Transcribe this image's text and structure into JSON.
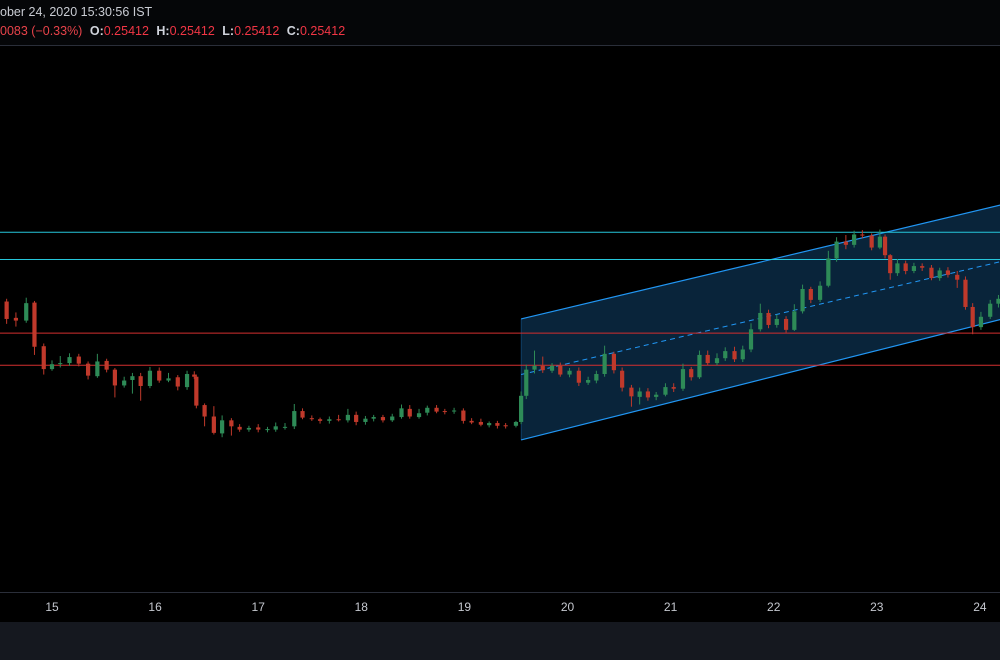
{
  "header": {
    "date_text": "ober 24, 2020 15:30:56 IST",
    "change_text": "0083 (−0.33%)",
    "open_label": "O:",
    "open_value": "0.25412",
    "high_label": "H:",
    "high_value": "0.25412",
    "low_label": "L:",
    "low_value": "0.25412",
    "close_label": "C:",
    "close_value": "0.25412"
  },
  "colors": {
    "up": "#2e8b57",
    "down": "#c0392b",
    "resistance": "#26c6da",
    "support": "#d32f2f",
    "channel": "#2196f3",
    "channel_fill": "#0b2a44"
  },
  "chart_data": {
    "type": "candlestick",
    "x_ticks": [
      "15",
      "16",
      "17",
      "18",
      "19",
      "20",
      "21",
      "22",
      "23",
      "24"
    ],
    "x_range": [
      14.47,
      24.22
    ],
    "y_range": [
      0.0,
      100.0
    ],
    "y_scale_note": "price axis not shown; values are relative price index (0 = bottom of plot, 100 = top)",
    "horizontal_levels": [
      {
        "kind": "resistance",
        "value": 66.0
      },
      {
        "kind": "resistance",
        "value": 61.0
      },
      {
        "kind": "support",
        "value": 47.5
      },
      {
        "kind": "support",
        "value": 41.6
      }
    ],
    "regression_channel": {
      "x_start": 19.55,
      "x_end": 24.22,
      "upper": [
        50.1,
        71.1
      ],
      "middle": [
        39.9,
        60.7
      ],
      "lower": [
        27.9,
        50.1
      ]
    },
    "candles": [
      [
        14.47,
        52.8,
        53.3,
        54.6,
        52.0
      ],
      [
        14.56,
        53.3,
        50.1,
        53.8,
        49.2
      ],
      [
        14.65,
        50.3,
        49.8,
        51.3,
        48.7
      ],
      [
        14.75,
        49.8,
        53.0,
        54.0,
        49.4
      ],
      [
        14.83,
        53.1,
        45.0,
        53.4,
        43.5
      ],
      [
        14.92,
        45.1,
        40.9,
        45.6,
        39.9
      ],
      [
        15.0,
        40.9,
        41.8,
        42.5,
        40.6
      ],
      [
        15.08,
        41.9,
        42.0,
        43.3,
        41.2
      ],
      [
        15.17,
        42.0,
        43.1,
        43.8,
        41.5
      ],
      [
        15.26,
        43.2,
        41.9,
        43.7,
        41.4
      ],
      [
        15.35,
        41.9,
        39.7,
        42.3,
        39.0
      ],
      [
        15.44,
        39.6,
        42.3,
        43.7,
        39.3
      ],
      [
        15.53,
        42.4,
        40.8,
        42.8,
        40.3
      ],
      [
        15.61,
        40.8,
        37.9,
        41.1,
        35.7
      ],
      [
        15.7,
        37.9,
        38.8,
        39.5,
        37.5
      ],
      [
        15.78,
        38.9,
        39.6,
        40.2,
        36.4
      ],
      [
        15.86,
        39.6,
        37.8,
        40.2,
        35.1
      ],
      [
        15.95,
        37.8,
        40.6,
        41.3,
        37.4
      ],
      [
        16.04,
        40.6,
        38.8,
        41.2,
        38.4
      ],
      [
        16.13,
        38.8,
        39.2,
        40.2,
        38.5
      ],
      [
        16.22,
        39.4,
        37.7,
        39.8,
        37.0
      ],
      [
        16.31,
        37.6,
        40.0,
        40.6,
        37.1
      ],
      [
        16.38,
        39.9,
        39.5,
        40.5,
        39.1
      ],
      [
        16.4,
        39.5,
        34.2,
        39.9,
        33.7
      ],
      [
        16.48,
        34.3,
        32.2,
        34.6,
        30.4
      ],
      [
        16.57,
        32.2,
        29.2,
        34.1,
        28.9
      ],
      [
        16.65,
        29.1,
        31.5,
        32.4,
        28.4
      ],
      [
        16.74,
        31.5,
        30.4,
        31.9,
        28.7
      ],
      [
        16.82,
        30.3,
        29.8,
        30.8,
        29.4
      ],
      [
        16.91,
        29.8,
        30.1,
        30.5,
        29.4
      ],
      [
        17.0,
        30.2,
        29.8,
        30.8,
        29.3
      ],
      [
        17.09,
        29.7,
        29.9,
        30.3,
        29.3
      ],
      [
        17.17,
        29.8,
        30.4,
        31.1,
        29.4
      ],
      [
        17.26,
        30.3,
        30.3,
        31.0,
        29.8
      ],
      [
        17.35,
        30.4,
        33.2,
        34.5,
        29.9
      ],
      [
        17.43,
        33.2,
        32.0,
        33.7,
        31.7
      ],
      [
        17.52,
        31.9,
        31.7,
        32.4,
        31.4
      ],
      [
        17.6,
        31.7,
        31.4,
        32.0,
        30.9
      ],
      [
        17.69,
        31.4,
        31.7,
        32.2,
        30.9
      ],
      [
        17.78,
        31.7,
        31.6,
        32.5,
        31.3
      ],
      [
        17.87,
        31.5,
        32.5,
        33.6,
        31.1
      ],
      [
        17.95,
        32.5,
        31.2,
        33.1,
        30.6
      ],
      [
        18.04,
        31.2,
        31.8,
        32.3,
        30.7
      ],
      [
        18.12,
        31.8,
        32.1,
        32.5,
        31.3
      ],
      [
        18.21,
        32.1,
        31.5,
        32.5,
        31.1
      ],
      [
        18.3,
        31.5,
        32.2,
        32.7,
        31.2
      ],
      [
        18.39,
        32.1,
        33.7,
        34.4,
        31.8
      ],
      [
        18.47,
        33.6,
        32.2,
        34.3,
        31.8
      ],
      [
        18.56,
        32.1,
        32.8,
        33.6,
        31.8
      ],
      [
        18.64,
        32.9,
        33.8,
        34.2,
        32.4
      ],
      [
        18.73,
        33.8,
        33.1,
        34.3,
        32.8
      ],
      [
        18.81,
        33.2,
        33.1,
        33.6,
        32.6
      ],
      [
        18.9,
        33.2,
        33.3,
        33.8,
        32.7
      ],
      [
        18.99,
        33.3,
        31.4,
        33.7,
        30.9
      ],
      [
        19.07,
        31.4,
        31.1,
        31.9,
        30.8
      ],
      [
        19.16,
        31.2,
        30.7,
        31.8,
        30.4
      ],
      [
        19.24,
        30.6,
        31.0,
        31.3,
        30.2
      ],
      [
        19.32,
        31.0,
        30.5,
        31.4,
        30.0
      ],
      [
        19.4,
        30.6,
        30.4,
        31.0,
        30.0
      ],
      [
        19.5,
        30.5,
        31.2,
        31.4,
        30.2
      ],
      [
        19.55,
        31.2,
        36.0,
        36.8,
        30.8
      ],
      [
        19.6,
        36.0,
        40.8,
        41.7,
        35.4
      ],
      [
        19.68,
        40.8,
        41.5,
        44.3,
        40.1
      ],
      [
        19.76,
        41.5,
        40.7,
        43.2,
        40.2
      ],
      [
        19.85,
        40.6,
        41.5,
        42.0,
        40.2
      ],
      [
        19.93,
        41.5,
        39.9,
        42.1,
        39.5
      ],
      [
        20.02,
        39.9,
        40.6,
        41.1,
        39.4
      ],
      [
        20.11,
        40.6,
        38.4,
        41.2,
        37.8
      ],
      [
        20.2,
        38.4,
        38.9,
        39.5,
        38.0
      ],
      [
        20.28,
        38.8,
        40.0,
        40.6,
        38.3
      ],
      [
        20.36,
        40.0,
        43.7,
        45.2,
        39.5
      ],
      [
        20.45,
        43.7,
        40.7,
        44.1,
        40.1
      ],
      [
        20.53,
        40.6,
        37.5,
        41.2,
        36.8
      ],
      [
        20.62,
        37.5,
        35.9,
        38.0,
        34.0
      ],
      [
        20.7,
        35.8,
        36.8,
        37.5,
        34.4
      ],
      [
        20.78,
        36.8,
        35.7,
        37.4,
        35.1
      ],
      [
        20.86,
        35.8,
        36.2,
        36.7,
        35.2
      ],
      [
        20.95,
        36.2,
        37.6,
        38.3,
        35.9
      ],
      [
        21.03,
        37.6,
        37.3,
        38.3,
        36.7
      ],
      [
        21.12,
        37.3,
        40.9,
        41.9,
        36.9
      ],
      [
        21.2,
        40.9,
        39.4,
        41.3,
        38.8
      ],
      [
        21.28,
        39.4,
        43.5,
        44.3,
        39.1
      ],
      [
        21.36,
        43.5,
        42.0,
        44.3,
        41.6
      ],
      [
        21.45,
        42.0,
        42.9,
        43.8,
        41.6
      ],
      [
        21.53,
        42.9,
        44.2,
        44.9,
        42.4
      ],
      [
        21.62,
        44.2,
        42.7,
        45.0,
        42.2
      ],
      [
        21.7,
        42.7,
        44.5,
        45.2,
        42.2
      ],
      [
        21.78,
        44.5,
        48.2,
        49.3,
        44.0
      ],
      [
        21.87,
        48.2,
        51.2,
        52.9,
        47.8
      ],
      [
        21.95,
        51.2,
        49.0,
        51.8,
        48.4
      ],
      [
        22.03,
        49.0,
        50.1,
        50.9,
        48.5
      ],
      [
        22.12,
        50.1,
        48.1,
        50.6,
        47.6
      ],
      [
        22.2,
        48.1,
        51.5,
        52.8,
        47.9
      ],
      [
        22.28,
        51.5,
        55.6,
        56.4,
        51.1
      ],
      [
        22.36,
        55.6,
        53.6,
        56.0,
        53.0
      ],
      [
        22.45,
        53.6,
        56.2,
        57.0,
        53.2
      ],
      [
        22.53,
        56.2,
        61.2,
        62.6,
        55.9
      ],
      [
        22.61,
        61.2,
        64.3,
        65.1,
        60.6
      ],
      [
        22.7,
        64.3,
        63.7,
        65.5,
        62.9
      ],
      [
        22.78,
        63.7,
        65.6,
        66.3,
        63.2
      ],
      [
        22.86,
        65.6,
        65.4,
        66.4,
        64.9
      ],
      [
        22.95,
        65.4,
        63.2,
        65.8,
        62.7
      ],
      [
        23.03,
        63.2,
        65.2,
        66.5,
        62.9
      ],
      [
        23.08,
        65.2,
        61.8,
        65.6,
        61.2
      ],
      [
        23.13,
        61.8,
        58.5,
        62.0,
        57.3
      ],
      [
        23.2,
        58.5,
        60.3,
        61.1,
        58.0
      ],
      [
        23.28,
        60.3,
        58.9,
        60.8,
        58.3
      ],
      [
        23.36,
        58.9,
        59.8,
        60.4,
        58.5
      ],
      [
        23.44,
        59.8,
        59.5,
        60.3,
        58.9
      ],
      [
        23.53,
        59.5,
        57.6,
        60.0,
        57.2
      ],
      [
        23.61,
        57.6,
        59.0,
        59.5,
        57.1
      ],
      [
        23.69,
        59.0,
        58.2,
        59.6,
        57.7
      ],
      [
        23.78,
        58.2,
        57.3,
        58.9,
        55.8
      ],
      [
        23.86,
        57.3,
        52.3,
        57.9,
        51.8
      ],
      [
        23.93,
        52.3,
        48.6,
        53.0,
        47.3
      ],
      [
        24.01,
        48.6,
        50.5,
        51.4,
        48.1
      ],
      [
        24.1,
        50.5,
        52.9,
        53.6,
        50.1
      ],
      [
        24.18,
        52.9,
        53.8,
        54.5,
        52.2
      ]
    ]
  }
}
